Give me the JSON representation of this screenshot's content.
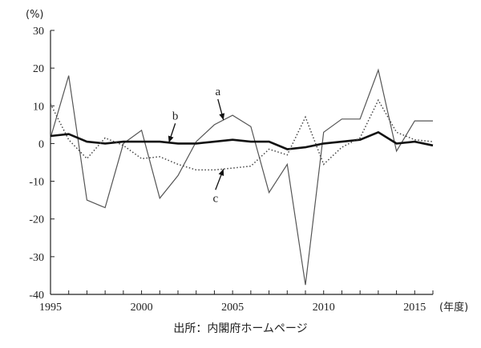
{
  "chart_data": {
    "type": "line",
    "title": "",
    "ylabel": "(%)",
    "xlabel": "(年度)",
    "ylim": [
      -40,
      30
    ],
    "xlim": [
      1995,
      2016
    ],
    "yticks": [
      30,
      20,
      10,
      0,
      -10,
      -20,
      -30,
      -40
    ],
    "xticks": [
      1995,
      2000,
      2005,
      2010,
      2015
    ],
    "grid": false,
    "x": [
      1995,
      1996,
      1997,
      1998,
      1999,
      2000,
      2001,
      2002,
      2003,
      2004,
      2005,
      2006,
      2007,
      2008,
      2009,
      2010,
      2011,
      2012,
      2013,
      2014,
      2015,
      2016
    ],
    "series": [
      {
        "name": "a",
        "style": "thin-solid",
        "values": [
          1.5,
          18,
          -15,
          -17,
          0,
          3.5,
          -14.5,
          -8.5,
          0.5,
          5,
          7.5,
          4.5,
          -13,
          -5.5,
          -37.5,
          3,
          6.5,
          6.5,
          19.5,
          -2,
          6,
          6
        ]
      },
      {
        "name": "b",
        "style": "thick-solid",
        "values": [
          2,
          2.5,
          0.5,
          0,
          0.5,
          0.5,
          0.5,
          0,
          0,
          0.5,
          1,
          0.5,
          0.5,
          -1.5,
          -1,
          0,
          0.5,
          1,
          3,
          0,
          0.5,
          -0.5
        ]
      },
      {
        "name": "c",
        "style": "dotted",
        "values": [
          10.5,
          1,
          -4,
          1.5,
          -0.5,
          -4,
          -3.5,
          -5.5,
          -7,
          -7,
          -6.5,
          -6,
          -1.5,
          -3,
          7,
          -5.5,
          -1,
          1.5,
          11.5,
          3,
          1,
          0.5
        ]
      }
    ],
    "annotations": [
      {
        "label": "a",
        "series": "a",
        "x": 2004.5
      },
      {
        "label": "b",
        "series": "b",
        "x": 2001.5
      },
      {
        "label": "c",
        "series": "c",
        "x": 2004.5
      }
    ]
  },
  "source": "出所：内閣府ホームページ"
}
